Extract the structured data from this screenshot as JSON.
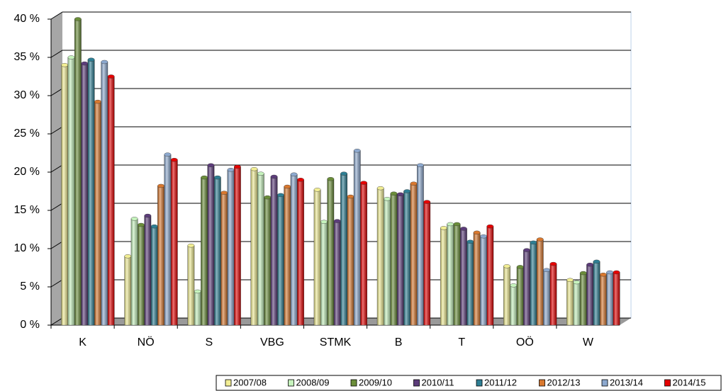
{
  "chart_data": {
    "type": "bar",
    "categories": [
      "K",
      "NÖ",
      "S",
      "VBG",
      "STMK",
      "B",
      "T",
      "OÖ",
      "W"
    ],
    "series": [
      {
        "name": "2007/08",
        "color": "#f2ee94",
        "values": [
          34,
          9,
          10.4,
          20.4,
          17.7,
          17.9,
          12.7,
          7.7,
          5.9
        ]
      },
      {
        "name": "2008/09",
        "color": "#c6f3bd",
        "values": [
          35,
          13.9,
          4.4,
          19.8,
          13.5,
          16.5,
          13.2,
          5.2,
          5.6
        ]
      },
      {
        "name": "2009/10",
        "color": "#6b8e3a",
        "values": [
          40,
          13.1,
          19.3,
          16.7,
          19.1,
          17.2,
          13.2,
          7.6,
          6.8
        ]
      },
      {
        "name": "2010/11",
        "color": "#5c3c7a",
        "values": [
          34.2,
          14.3,
          20.9,
          19.4,
          13.6,
          17.1,
          12.6,
          9.8,
          7.9
        ]
      },
      {
        "name": "2011/12",
        "color": "#2e7f94",
        "values": [
          34.7,
          12.9,
          19.3,
          17,
          19.8,
          17.5,
          10.9,
          10.8,
          8.3
        ]
      },
      {
        "name": "2012/13",
        "color": "#d9782e",
        "values": [
          29.2,
          18.2,
          17.3,
          18.1,
          16.8,
          18.5,
          12.1,
          11.2,
          6.6
        ]
      },
      {
        "name": "2013/14",
        "color": "#8da9cf",
        "values": [
          34.4,
          22.3,
          20.3,
          19.7,
          22.8,
          20.9,
          11.6,
          7.2,
          6.9
        ]
      },
      {
        "name": "2014/15",
        "color": "#e60000",
        "values": [
          32.5,
          21.6,
          20.7,
          19,
          18.6,
          16.1,
          12.9,
          8.0,
          6.9
        ]
      }
    ],
    "ylim": [
      0,
      40
    ],
    "yticks": [
      {
        "value": 0,
        "label": "0 %"
      },
      {
        "value": 5,
        "label": "5 %"
      },
      {
        "value": 10,
        "label": "10 %"
      },
      {
        "value": 15,
        "label": "15 %"
      },
      {
        "value": 20,
        "label": "20 %"
      },
      {
        "value": 25,
        "label": "25 %"
      },
      {
        "value": 30,
        "label": "30 %"
      },
      {
        "value": 35,
        "label": "35 %"
      },
      {
        "value": 40,
        "label": "40 %"
      }
    ],
    "grid": true,
    "legend": "bottom-right"
  }
}
